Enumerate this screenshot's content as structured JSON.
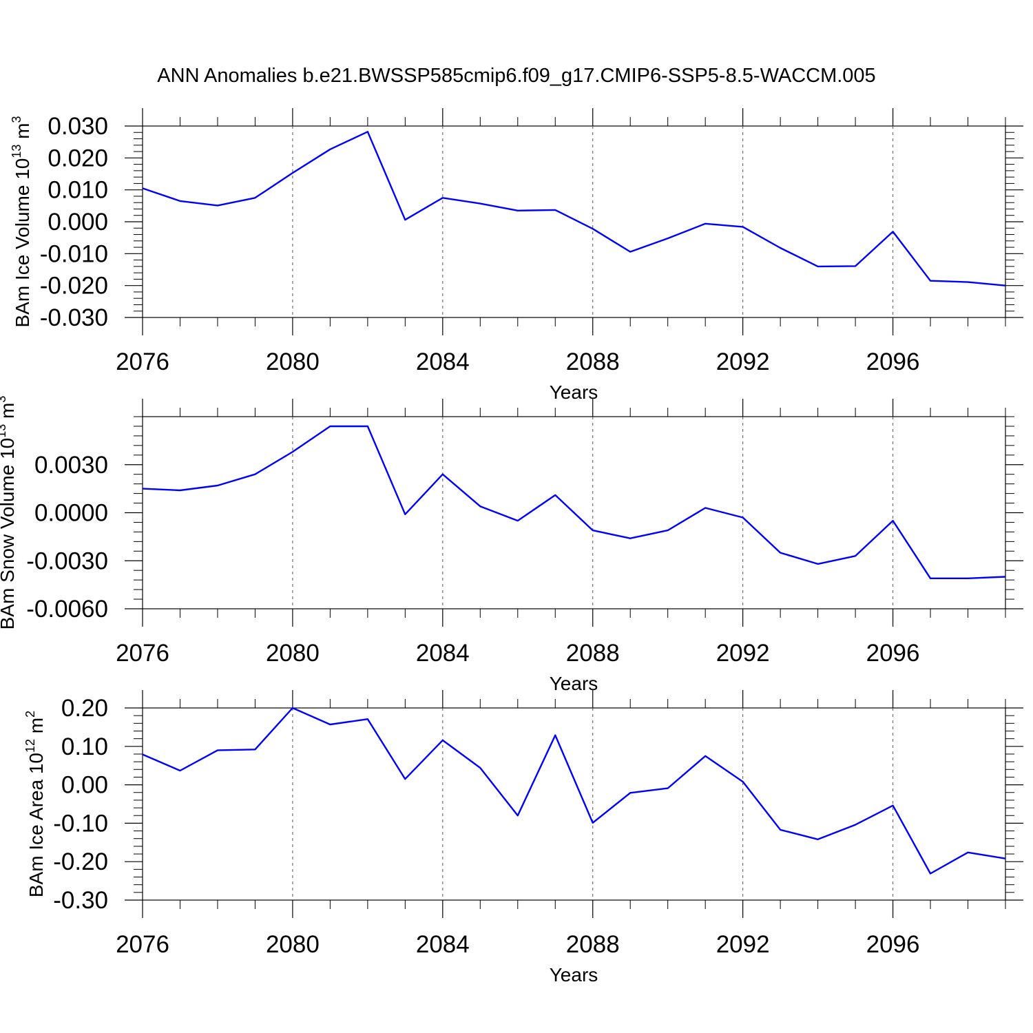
{
  "figure_title": "ANN Anomalies b.e21.BWSSP585cmip6.f09_g17.CMIP6-SSP5-8.5-WACCM.005",
  "line_color": "#0000ff",
  "chart_data": [
    {
      "type": "line",
      "ylabel": "BAm Ice Volume 10",
      "ylabel_exp": "13",
      "ylabel_unit": " m",
      "ylabel_unit_exp": "3",
      "xlabel": "Years",
      "xlim": [
        2076,
        2099
      ],
      "ylim": [
        -0.03,
        0.03
      ],
      "xticks": [
        2076,
        2080,
        2084,
        2088,
        2092,
        2096
      ],
      "xtick_labels": [
        "2076",
        "2080",
        "2084",
        "2088",
        "2092",
        "2096"
      ],
      "yticks": [
        -0.03,
        -0.02,
        -0.01,
        0.0,
        0.01,
        0.02,
        0.03
      ],
      "ytick_labels": [
        "-0.030",
        "-0.020",
        "-0.010",
        "0.000",
        "0.010",
        "0.020",
        "0.030"
      ],
      "grid": "vertical dashed at major x ticks",
      "x": [
        2076,
        2077,
        2078,
        2079,
        2080,
        2081,
        2082,
        2083,
        2084,
        2085,
        2086,
        2087,
        2088,
        2089,
        2090,
        2091,
        2092,
        2093,
        2094,
        2095,
        2096,
        2097,
        2098,
        2099
      ],
      "series": [
        {
          "values": [
            0.0105,
            0.0065,
            0.0051,
            0.0075,
            0.0153,
            0.0227,
            0.0282,
            0.0006,
            0.0075,
            0.0057,
            0.0035,
            0.0037,
            -0.0022,
            -0.0094,
            -0.0052,
            -0.0006,
            -0.0016,
            -0.0082,
            -0.014,
            -0.0139,
            -0.0031,
            -0.0185,
            -0.0189,
            -0.02
          ]
        }
      ]
    },
    {
      "type": "line",
      "ylabel": "BAm Snow Volume 10",
      "ylabel_exp": "13",
      "ylabel_unit": " m",
      "ylabel_unit_exp": "3",
      "xlabel": "Years",
      "xlim": [
        2076,
        2099
      ],
      "ylim": [
        -0.006,
        0.006
      ],
      "xticks": [
        2076,
        2080,
        2084,
        2088,
        2092,
        2096
      ],
      "xtick_labels": [
        "2076",
        "2080",
        "2084",
        "2088",
        "2092",
        "2096"
      ],
      "yticks": [
        -0.006,
        -0.003,
        0.0,
        0.003
      ],
      "ytick_labels": [
        "-0.0060",
        "-0.0030",
        "0.0000",
        "0.0030"
      ],
      "grid": "vertical dashed at major x ticks",
      "x": [
        2076,
        2077,
        2078,
        2079,
        2080,
        2081,
        2082,
        2083,
        2084,
        2085,
        2086,
        2087,
        2088,
        2089,
        2090,
        2091,
        2092,
        2093,
        2094,
        2095,
        2096,
        2097,
        2098,
        2099
      ],
      "series": [
        {
          "values": [
            0.0015,
            0.0014,
            0.0017,
            0.0024,
            0.0038,
            0.0054,
            0.0054,
            -0.0001,
            0.0024,
            0.0004,
            -0.0005,
            0.0011,
            -0.0011,
            -0.0016,
            -0.0011,
            0.0003,
            -0.0003,
            -0.0025,
            -0.0032,
            -0.0027,
            -0.0005,
            -0.0041,
            -0.0041,
            -0.004
          ]
        }
      ]
    },
    {
      "type": "line",
      "ylabel": "BAm Ice Area 10",
      "ylabel_exp": "12",
      "ylabel_unit": " m",
      "ylabel_unit_exp": "2",
      "xlabel": "Years",
      "xlim": [
        2076,
        2099
      ],
      "ylim": [
        -0.3,
        0.2
      ],
      "xticks": [
        2076,
        2080,
        2084,
        2088,
        2092,
        2096
      ],
      "xtick_labels": [
        "2076",
        "2080",
        "2084",
        "2088",
        "2092",
        "2096"
      ],
      "yticks": [
        -0.3,
        -0.2,
        -0.1,
        0.0,
        0.1,
        0.2
      ],
      "ytick_labels": [
        "-0.30",
        "-0.20",
        "-0.10",
        "0.00",
        "0.10",
        "0.20"
      ],
      "grid": "vertical dashed at major x ticks",
      "x": [
        2076,
        2077,
        2078,
        2079,
        2080,
        2081,
        2082,
        2083,
        2084,
        2085,
        2086,
        2087,
        2088,
        2089,
        2090,
        2091,
        2092,
        2093,
        2094,
        2095,
        2096,
        2097,
        2098,
        2099
      ],
      "series": [
        {
          "values": [
            0.079,
            0.037,
            0.09,
            0.092,
            0.2,
            0.157,
            0.171,
            0.015,
            0.116,
            0.044,
            -0.08,
            0.129,
            -0.099,
            -0.021,
            -0.009,
            0.075,
            0.008,
            -0.117,
            -0.142,
            -0.104,
            -0.054,
            -0.231,
            -0.176,
            -0.192
          ]
        }
      ]
    }
  ]
}
